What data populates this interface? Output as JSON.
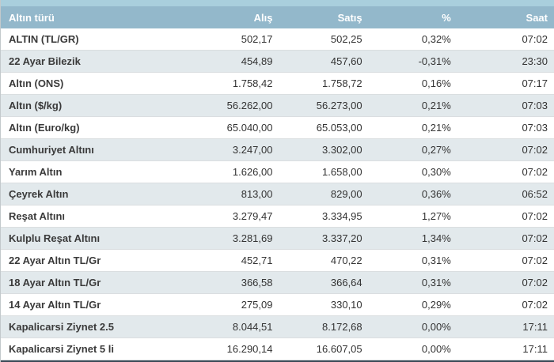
{
  "header": {
    "columns": [
      "Altın türü",
      "Alış",
      "Satış",
      "%",
      "Saat"
    ]
  },
  "rows": [
    {
      "name": "ALTIN (TL/GR)",
      "alis": "502,17",
      "satis": "502,25",
      "pct": "0,32%",
      "saat": "07:02"
    },
    {
      "name": "22 Ayar Bilezik",
      "alis": "454,89",
      "satis": "457,60",
      "pct": "-0,31%",
      "saat": "23:30"
    },
    {
      "name": "Altın (ONS)",
      "alis": "1.758,42",
      "satis": "1.758,72",
      "pct": "0,16%",
      "saat": "07:17"
    },
    {
      "name": "Altın ($/kg)",
      "alis": "56.262,00",
      "satis": "56.273,00",
      "pct": "0,21%",
      "saat": "07:03"
    },
    {
      "name": "Altın (Euro/kg)",
      "alis": "65.040,00",
      "satis": "65.053,00",
      "pct": "0,21%",
      "saat": "07:03"
    },
    {
      "name": "Cumhuriyet Altını",
      "alis": "3.247,00",
      "satis": "3.302,00",
      "pct": "0,27%",
      "saat": "07:02"
    },
    {
      "name": "Yarım Altın",
      "alis": "1.626,00",
      "satis": "1.658,00",
      "pct": "0,30%",
      "saat": "07:02"
    },
    {
      "name": "Çeyrek Altın",
      "alis": "813,00",
      "satis": "829,00",
      "pct": "0,36%",
      "saat": "06:52"
    },
    {
      "name": "Reşat Altını",
      "alis": "3.279,47",
      "satis": "3.334,95",
      "pct": "1,27%",
      "saat": "07:02"
    },
    {
      "name": "Kulplu Reşat Altını",
      "alis": "3.281,69",
      "satis": "3.337,20",
      "pct": "1,34%",
      "saat": "07:02"
    },
    {
      "name": "22 Ayar Altın TL/Gr",
      "alis": "452,71",
      "satis": "470,22",
      "pct": "0,31%",
      "saat": "07:02"
    },
    {
      "name": "18 Ayar Altın TL/Gr",
      "alis": "366,58",
      "satis": "366,64",
      "pct": "0,31%",
      "saat": "07:02"
    },
    {
      "name": "14 Ayar Altın TL/Gr",
      "alis": "275,09",
      "satis": "330,10",
      "pct": "0,29%",
      "saat": "07:02"
    },
    {
      "name": "Kapalicarsi Ziynet 2.5",
      "alis": "8.044,51",
      "satis": "8.172,68",
      "pct": "0,00%",
      "saat": "17:11"
    },
    {
      "name": "Kapalicarsi Ziynet 5 li",
      "alis": "16.290,14",
      "satis": "16.607,05",
      "pct": "0,00%",
      "saat": "17:11"
    }
  ],
  "colors": {
    "top_strip": "#a9cfdd",
    "header_bg": "#93b8cb",
    "header_text": "#ffffff",
    "row_bg": "#ffffff",
    "row_alt_bg": "#e2e9ec",
    "text": "#333333",
    "bottom_bar": "#3a4a57"
  }
}
